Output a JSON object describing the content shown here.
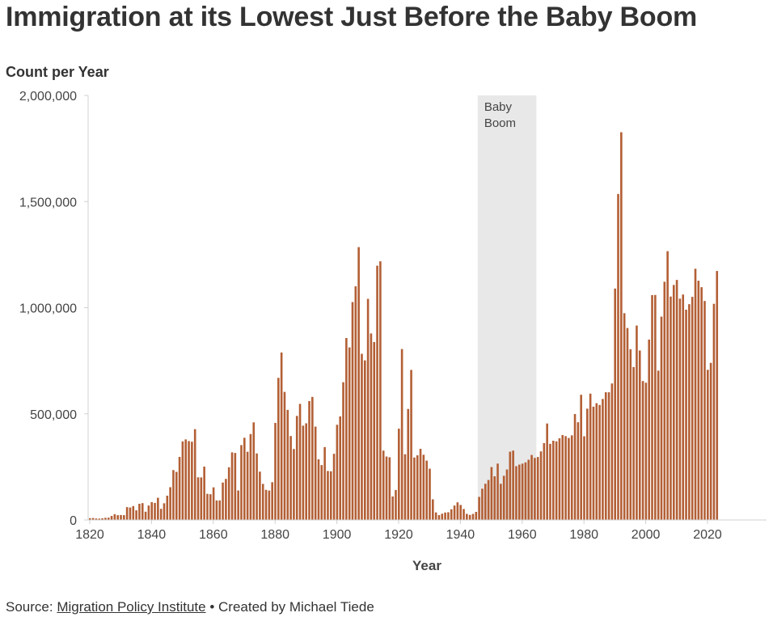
{
  "chart_data": {
    "type": "bar",
    "title": "Immigration at its Lowest Just Before the Baby Boom",
    "ylabel": "Count per Year",
    "xlabel": "Year",
    "ylim": [
      0,
      2000000
    ],
    "xlim": [
      1820,
      2040
    ],
    "yticks": [
      0,
      500000,
      1000000,
      1500000,
      2000000
    ],
    "ytick_labels": [
      "0",
      "500,000",
      "1,000,000",
      "1,500,000",
      "2,000,000"
    ],
    "xticks": [
      1820,
      1840,
      1860,
      1880,
      1900,
      1920,
      1940,
      1960,
      1980,
      2000,
      2020
    ],
    "xtick_labels": [
      "1820",
      "1840",
      "1860",
      "1880",
      "1900",
      "1920",
      "1940",
      "1960",
      "1980",
      "2000",
      "2020"
    ],
    "bar_color": "#b35f35",
    "annotation": {
      "label_line1": "Baby",
      "label_line2": "Boom",
      "start_year": 1946,
      "end_year": 1964,
      "color": "#e8e8e8"
    },
    "start_year": 1820,
    "values": [
      8385,
      9127,
      6911,
      6354,
      7912,
      10199,
      10837,
      18875,
      27382,
      22520,
      23322,
      22633,
      60482,
      58640,
      65365,
      45374,
      76242,
      79340,
      38914,
      68069,
      84066,
      80289,
      104565,
      52496,
      78615,
      114371,
      154416,
      234968,
      226527,
      297024,
      369980,
      379466,
      371603,
      368645,
      427833,
      200877,
      200436,
      251306,
      123126,
      121282,
      153640,
      91918,
      91985,
      176282,
      193418,
      248120,
      318568,
      315722,
      138840,
      352768,
      387203,
      321350,
      404806,
      459803,
      313339,
      227498,
      169986,
      141857,
      138469,
      177826,
      457257,
      669431,
      788992,
      603322,
      518592,
      395346,
      334203,
      490109,
      546889,
      444427,
      455302,
      560319,
      579663,
      439730,
      285631,
      258536,
      343267,
      230832,
      229299,
      311715,
      448572,
      487918,
      648743,
      857046,
      812870,
      1026499,
      1100735,
      1285349,
      782870,
      751786,
      1041570,
      878587,
      838172,
      1197892,
      1218480,
      326700,
      298826,
      295403,
      110618,
      141132,
      430001,
      805228,
      309556,
      522919,
      706896,
      294314,
      304488,
      335175,
      307255,
      279678,
      241700,
      97139,
      35576,
      23068,
      29470,
      34956,
      36329,
      50244,
      67895,
      82998,
      70756,
      51776,
      28781,
      23725,
      28551,
      38119,
      108721,
      147292,
      170570,
      188317,
      249187,
      205717,
      265520,
      170434,
      208177,
      237790,
      321625,
      326867,
      253265,
      260686,
      265398,
      271344,
      283763,
      306260,
      292248,
      296697,
      323040,
      361972,
      454448,
      358579,
      373326,
      370478,
      384685,
      400063,
      394861,
      386194,
      398613,
      499093,
      460348,
      589810,
      394244,
      524295,
      595014,
      533624,
      550052,
      541811,
      570009,
      601708,
      601516,
      643025,
      1090172,
      1535872,
      1826595,
      973977,
      904292,
      804416,
      720461,
      915900,
      798378,
      654451,
      646568,
      849807,
      1059356,
      1059902,
      703542,
      957883,
      1122257,
      1266129,
      1052415,
      1107126,
      1130818,
      1042625,
      1062040,
      990553,
      1016518,
      1051031,
      1183505,
      1127167,
      1096611,
      1031765,
      707362,
      740002,
      1018349,
      1172910
    ]
  },
  "footer": {
    "source_label": "Source:",
    "source_link": "Migration Policy Institute",
    "separator": "•",
    "credit": "Created by Michael Tiede"
  }
}
